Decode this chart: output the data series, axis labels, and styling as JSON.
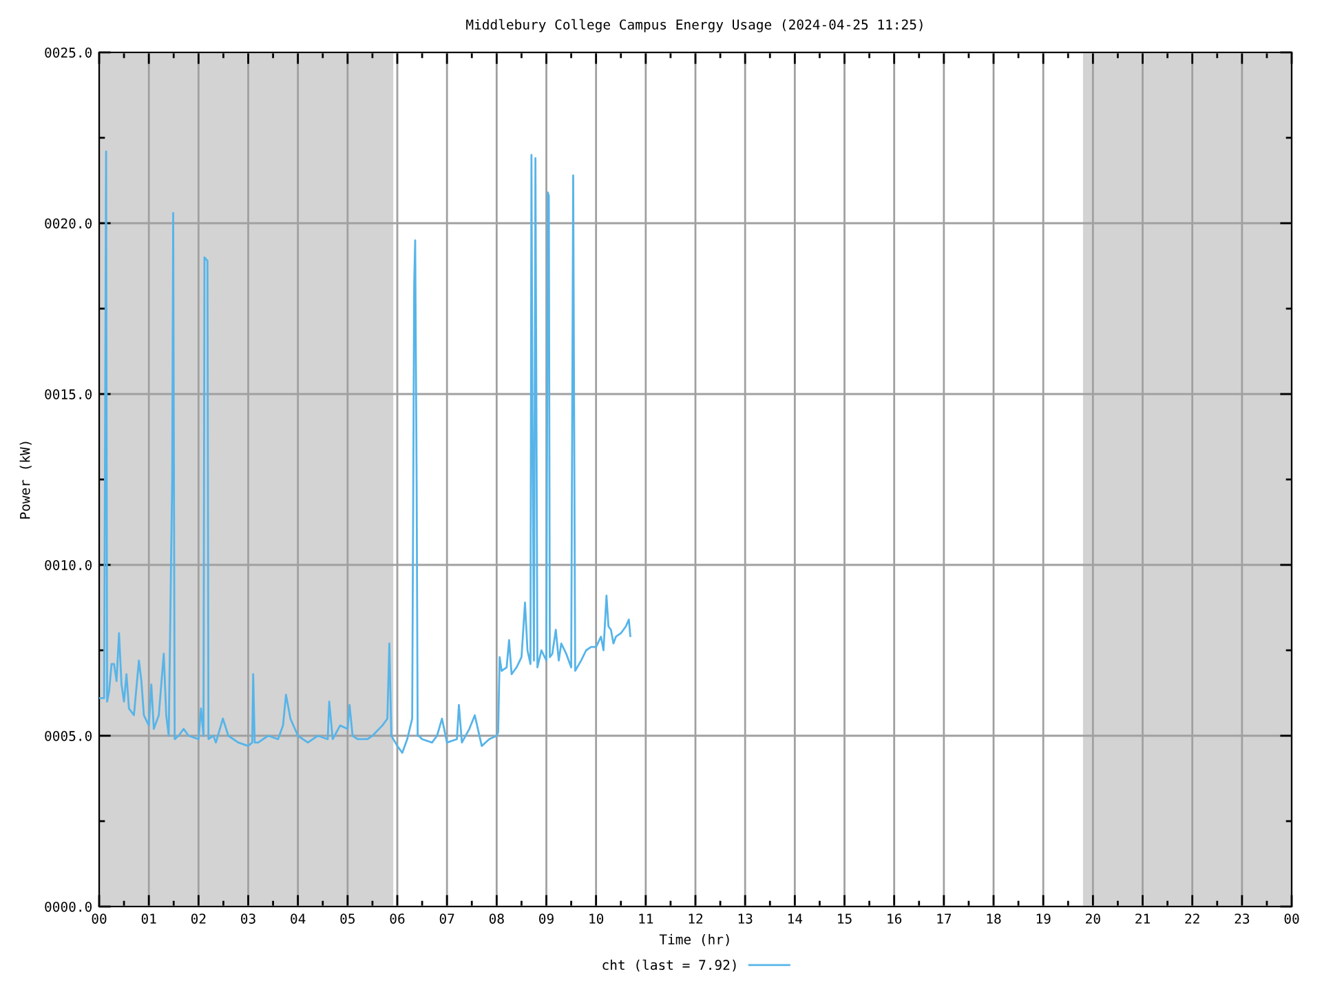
{
  "chart_data": {
    "type": "line",
    "title": "Middlebury College Campus Energy Usage (2024-04-25 11:25)",
    "xlabel": "Time (hr)",
    "ylabel": "Power (kW)",
    "xlim": [
      0,
      24
    ],
    "xticks": [
      {
        "value": 0,
        "label": "00"
      },
      {
        "value": 1,
        "label": "01"
      },
      {
        "value": 2,
        "label": "02"
      },
      {
        "value": 3,
        "label": "03"
      },
      {
        "value": 4,
        "label": "04"
      },
      {
        "value": 5,
        "label": "05"
      },
      {
        "value": 6,
        "label": "06"
      },
      {
        "value": 7,
        "label": "07"
      },
      {
        "value": 8,
        "label": "08"
      },
      {
        "value": 9,
        "label": "09"
      },
      {
        "value": 10,
        "label": "10"
      },
      {
        "value": 11,
        "label": "11"
      },
      {
        "value": 12,
        "label": "12"
      },
      {
        "value": 13,
        "label": "13"
      },
      {
        "value": 14,
        "label": "14"
      },
      {
        "value": 15,
        "label": "15"
      },
      {
        "value": 16,
        "label": "16"
      },
      {
        "value": 17,
        "label": "17"
      },
      {
        "value": 18,
        "label": "18"
      },
      {
        "value": 19,
        "label": "19"
      },
      {
        "value": 20,
        "label": "20"
      },
      {
        "value": 21,
        "label": "21"
      },
      {
        "value": 22,
        "label": "22"
      },
      {
        "value": 23,
        "label": "23"
      },
      {
        "value": 24,
        "label": "00"
      }
    ],
    "ylim": [
      0,
      25
    ],
    "yticks": [
      {
        "value": 0,
        "label": "0000.0"
      },
      {
        "value": 5,
        "label": "0005.0"
      },
      {
        "value": 10,
        "label": "0010.0"
      },
      {
        "value": 15,
        "label": "0015.0"
      },
      {
        "value": 20,
        "label": "0020.0"
      },
      {
        "value": 25,
        "label": "0025.0"
      }
    ],
    "grid": true,
    "legend": "bottom",
    "line_style": "solid",
    "marker": "none",
    "bands": [
      {
        "axis": "x",
        "from": 0,
        "to": 5.92,
        "color": "#d3d3d3"
      },
      {
        "axis": "x",
        "from": 19.8,
        "to": 24,
        "color": "#d3d3d3"
      }
    ],
    "series": [
      {
        "name": "cht (last = 7.92)",
        "color": "#56b4e9",
        "x": [
          0.0,
          0.1,
          0.12,
          0.14,
          0.16,
          0.2,
          0.25,
          0.3,
          0.35,
          0.4,
          0.45,
          0.5,
          0.55,
          0.6,
          0.7,
          0.8,
          0.85,
          0.9,
          1.0,
          1.05,
          1.1,
          1.2,
          1.3,
          1.35,
          1.4,
          1.47,
          1.49,
          1.52,
          1.6,
          1.7,
          1.8,
          2.0,
          2.05,
          2.1,
          2.12,
          2.18,
          2.2,
          2.3,
          2.35,
          2.49,
          2.6,
          2.8,
          3.0,
          3.08,
          3.1,
          3.13,
          3.2,
          3.4,
          3.6,
          3.7,
          3.76,
          3.85,
          4.0,
          4.2,
          4.4,
          4.6,
          4.63,
          4.7,
          4.85,
          5.0,
          5.04,
          5.1,
          5.2,
          5.4,
          5.5,
          5.7,
          5.8,
          5.84,
          5.88,
          6.0,
          6.1,
          6.2,
          6.3,
          6.34,
          6.36,
          6.39,
          6.41,
          6.43,
          6.5,
          6.7,
          6.8,
          6.9,
          7.0,
          7.2,
          7.24,
          7.3,
          7.45,
          7.56,
          7.7,
          7.85,
          8.0,
          8.03,
          8.06,
          8.1,
          8.2,
          8.25,
          8.3,
          8.4,
          8.5,
          8.57,
          8.62,
          8.68,
          8.7,
          8.72,
          8.75,
          8.78,
          8.8,
          8.82,
          8.9,
          9.0,
          9.03,
          9.05,
          9.07,
          9.12,
          9.19,
          9.25,
          9.3,
          9.4,
          9.5,
          9.54,
          9.56,
          9.58,
          9.7,
          9.8,
          9.9,
          10.0,
          10.1,
          10.15,
          10.21,
          10.25,
          10.3,
          10.35,
          10.4,
          10.5,
          10.6,
          10.66,
          10.69
        ],
        "values": [
          6.1,
          6.1,
          14.0,
          22.1,
          6.0,
          6.3,
          7.1,
          7.1,
          6.6,
          8.0,
          6.5,
          6.0,
          6.8,
          5.8,
          5.6,
          7.2,
          6.6,
          5.6,
          5.3,
          6.5,
          5.2,
          5.6,
          7.4,
          5.6,
          5.0,
          12.5,
          20.3,
          4.9,
          5.0,
          5.2,
          5.0,
          4.9,
          5.8,
          5.0,
          19.0,
          18.9,
          4.9,
          5.0,
          4.8,
          5.5,
          5.0,
          4.8,
          4.7,
          4.8,
          6.8,
          4.8,
          4.8,
          5.0,
          4.9,
          5.3,
          6.2,
          5.5,
          5.0,
          4.8,
          5.0,
          4.9,
          6.0,
          4.9,
          5.3,
          5.2,
          5.9,
          5.0,
          4.9,
          4.9,
          5.0,
          5.3,
          5.5,
          7.7,
          5.0,
          4.7,
          4.5,
          4.9,
          5.5,
          18.2,
          19.5,
          12.3,
          5.0,
          5.0,
          4.9,
          4.8,
          5.0,
          5.5,
          4.8,
          4.9,
          5.9,
          4.8,
          5.2,
          5.6,
          4.7,
          4.9,
          5.0,
          5.1,
          7.3,
          6.9,
          7.0,
          7.8,
          6.8,
          7.0,
          7.3,
          8.9,
          7.5,
          7.1,
          22.0,
          14.5,
          7.2,
          21.9,
          14.5,
          7.0,
          7.5,
          7.2,
          20.9,
          20.8,
          7.3,
          7.4,
          8.1,
          7.2,
          7.7,
          7.4,
          7.0,
          21.4,
          14.1,
          6.9,
          7.2,
          7.5,
          7.6,
          7.6,
          7.9,
          7.5,
          9.1,
          8.2,
          8.1,
          7.7,
          7.9,
          8.0,
          8.2,
          8.4,
          7.92
        ]
      }
    ]
  }
}
